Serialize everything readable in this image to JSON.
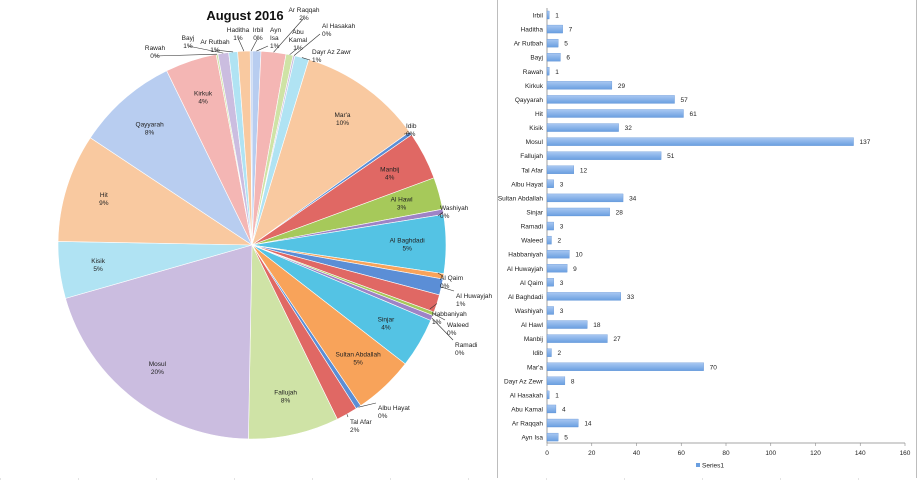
{
  "chart_data": [
    {
      "type": "pie",
      "title": "August 2016",
      "slices": [
        {
          "name": "Ayn Isa",
          "value": 5,
          "label": "1%"
        },
        {
          "name": "Ar Raqqah",
          "value": 14,
          "label": "2%"
        },
        {
          "name": "Abu Kamal",
          "value": 4,
          "label": "1%"
        },
        {
          "name": "Al Hasakah",
          "value": 1,
          "label": "0%"
        },
        {
          "name": "Dayr Az Zawr",
          "value": 8,
          "label": "1%"
        },
        {
          "name": "Mar'a",
          "value": 70,
          "label": "10%"
        },
        {
          "name": "Idib",
          "value": 2,
          "label": "0%"
        },
        {
          "name": "Manbij",
          "value": 27,
          "label": "4%"
        },
        {
          "name": "Al Hawl",
          "value": 18,
          "label": "3%"
        },
        {
          "name": "Washiyah",
          "value": 3,
          "label": "0%"
        },
        {
          "name": "Al Baghdadi",
          "value": 33,
          "label": "5%"
        },
        {
          "name": "Al Qaim",
          "value": 3,
          "label": "0%"
        },
        {
          "name": "Al Huwayjah",
          "value": 9,
          "label": "1%"
        },
        {
          "name": "Habbaniyah",
          "value": 10,
          "label": "1%"
        },
        {
          "name": "Waleed",
          "value": 2,
          "label": "0%"
        },
        {
          "name": "Ramadi",
          "value": 3,
          "label": "0%"
        },
        {
          "name": "Sinjar",
          "value": 28,
          "label": "4%"
        },
        {
          "name": "Sultan Abdallah",
          "value": 34,
          "label": "5%"
        },
        {
          "name": "Albu Hayat",
          "value": 3,
          "label": "0%"
        },
        {
          "name": "Tal Afar",
          "value": 12,
          "label": "2%"
        },
        {
          "name": "Fallujah",
          "value": 51,
          "label": "8%"
        },
        {
          "name": "Mosul",
          "value": 137,
          "label": "20%"
        },
        {
          "name": "Kisik",
          "value": 32,
          "label": "5%"
        },
        {
          "name": "Hit",
          "value": 61,
          "label": "9%"
        },
        {
          "name": "Qayyarah",
          "value": 57,
          "label": "8%"
        },
        {
          "name": "Kirkuk",
          "value": 29,
          "label": "4%"
        },
        {
          "name": "Rawah",
          "value": 1,
          "label": "0%"
        },
        {
          "name": "Bayj",
          "value": 6,
          "label": "1%"
        },
        {
          "name": "Ar Rutbah",
          "value": 5,
          "label": "1%"
        },
        {
          "name": "Haditha",
          "value": 7,
          "label": "1%"
        },
        {
          "name": "Irbil",
          "value": 1,
          "label": "0%"
        }
      ],
      "palette_light": [
        "#b8cdf0",
        "#f4b6b4",
        "#cfe3a6",
        "#cbbde0",
        "#b0e3f3",
        "#f9c9a0"
      ],
      "palette_mid": [
        "#5b8ed6",
        "#e06864",
        "#a6c95a",
        "#9e83c6",
        "#54c3e4",
        "#f8a35a"
      ]
    },
    {
      "type": "bar",
      "orientation": "horizontal",
      "categories": [
        "Irbil",
        "Haditha",
        "Ar Rutbah",
        "Bayj",
        "Rawah",
        "Kirkuk",
        "Qayyarah",
        "Hit",
        "Kisik",
        "Mosul",
        "Fallujah",
        "Tal Afar",
        "Albu Hayat",
        "Sultan Abdallah",
        "Sinjar",
        "Ramadi",
        "Waleed",
        "Habbaniyah",
        "Al Huwayjah",
        "Al Qaim",
        "Al Baghdadi",
        "Washiyah",
        "Al Hawl",
        "Manbij",
        "Idib",
        "Mar'a",
        "Dayr Az Zewr",
        "Al Hasakah",
        "Abu Kamal",
        "Ar Raqqah",
        "Ayn Isa"
      ],
      "series": [
        {
          "name": "Series1",
          "values": [
            1,
            7,
            5,
            6,
            1,
            29,
            57,
            61,
            32,
            137,
            51,
            12,
            3,
            34,
            28,
            3,
            2,
            10,
            9,
            3,
            33,
            3,
            18,
            27,
            2,
            70,
            8,
            1,
            4,
            14,
            5
          ]
        }
      ],
      "xlim": [
        0,
        160
      ],
      "xticks": [
        "0",
        "20",
        "40",
        "60",
        "80",
        "100",
        "120",
        "140",
        "160"
      ],
      "bar_color": "#6a9fe0",
      "legend": "bottom",
      "grid": false
    }
  ]
}
